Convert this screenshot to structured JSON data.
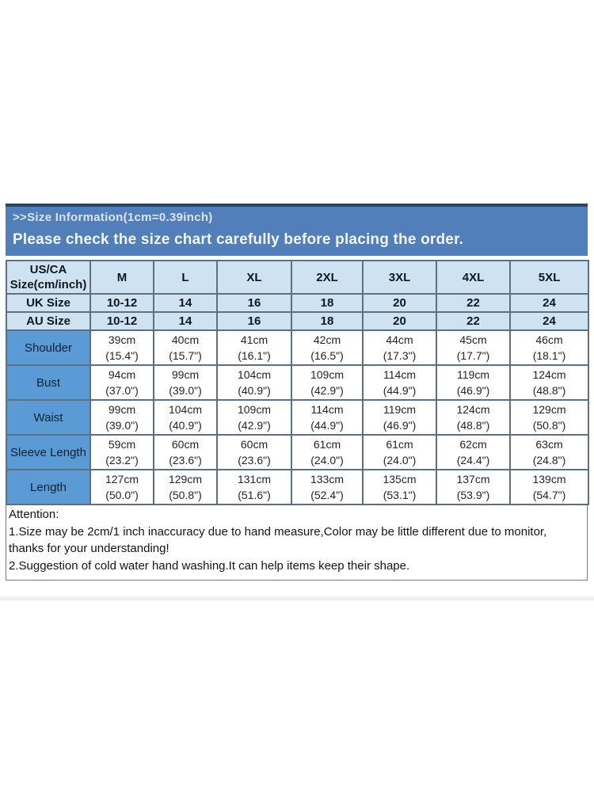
{
  "banner": {
    "title": ">>Size Information(1cm=0.39inch)",
    "note": "Please check the size chart carefully before placing the order."
  },
  "size_chart": {
    "corner_header": [
      "US/CA",
      "Size(cm/inch)"
    ],
    "size_columns": [
      "M",
      "L",
      "XL",
      "2XL",
      "3XL",
      "4XL",
      "5XL"
    ],
    "size_rows": [
      {
        "label": "UK Size",
        "values": [
          "10-12",
          "14",
          "16",
          "18",
          "20",
          "22",
          "24"
        ]
      },
      {
        "label": "AU Size",
        "values": [
          "10-12",
          "14",
          "16",
          "18",
          "20",
          "22",
          "24"
        ]
      }
    ],
    "measurement_rows": [
      {
        "label": "Shoulder",
        "cm": [
          "39cm",
          "40cm",
          "41cm",
          "42cm",
          "44cm",
          "45cm",
          "46cm"
        ],
        "inch": [
          "(15.4\")",
          "(15.7\")",
          "(16.1\")",
          "(16.5\")",
          "(17.3\")",
          "(17.7\")",
          "(18.1\")"
        ]
      },
      {
        "label": "Bust",
        "cm": [
          "94cm",
          "99cm",
          "104cm",
          "109cm",
          "114cm",
          "119cm",
          "124cm"
        ],
        "inch": [
          "(37.0\")",
          "(39.0\")",
          "(40.9\")",
          "(42.9\")",
          "(44.9\")",
          "(46.9\")",
          "(48.8\")"
        ]
      },
      {
        "label": "Waist",
        "cm": [
          "99cm",
          "104cm",
          "109cm",
          "114cm",
          "119cm",
          "124cm",
          "129cm"
        ],
        "inch": [
          "(39.0\")",
          "(40.9\")",
          "(42.9\")",
          "(44.9\")",
          "(46.9\")",
          "(48.8\")",
          "(50.8\")"
        ]
      },
      {
        "label": "Sleeve Length",
        "cm": [
          "59cm",
          "60cm",
          "60cm",
          "61cm",
          "61cm",
          "62cm",
          "63cm"
        ],
        "inch": [
          "(23.2\")",
          "(23.6\")",
          "(23.6\")",
          "(24.0\")",
          "(24.0\")",
          "(24.4\")",
          "(24.8\")"
        ]
      },
      {
        "label": "Length",
        "cm": [
          "127cm",
          "129cm",
          "131cm",
          "133cm",
          "135cm",
          "137cm",
          "139cm"
        ],
        "inch": [
          "(50.0\")",
          "(50.8\")",
          "(51.6\")",
          "(52.4\")",
          "(53.1\")",
          "(53.9\")",
          "(54.7\")"
        ]
      }
    ]
  },
  "attention": {
    "heading": "Attention:",
    "lines": [
      "1.Size may be 2cm/1 inch inaccuracy due to hand measure,Color may be little different due to monitor,",
      "thanks for your understanding!",
      "2.Suggestion of cold water hand washing.It can help items keep their shape."
    ]
  },
  "colors": {
    "banner_blue": "#527fb9",
    "banner_border_navy": "#26466d",
    "header_light_blue": "#cfe2f2",
    "row_label_blue": "#5b9bd5",
    "table_border_gray": "#5d7081"
  }
}
